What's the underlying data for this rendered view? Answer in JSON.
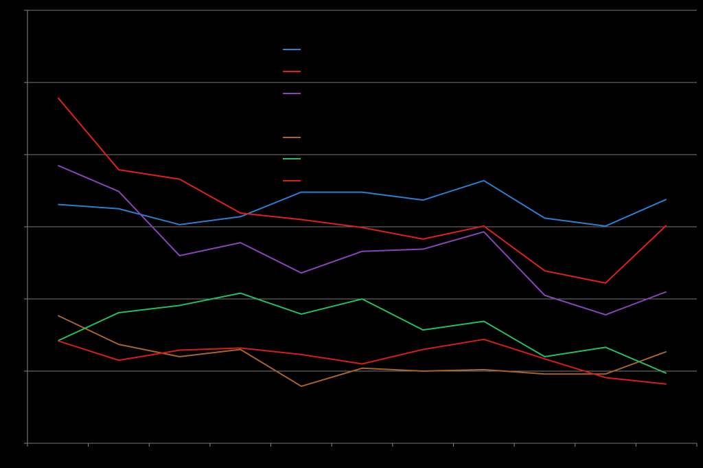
{
  "chart_data": {
    "type": "line",
    "categories": [
      null,
      null,
      null,
      null,
      null,
      null,
      null,
      null,
      null,
      null,
      null
    ],
    "ylim": [
      0,
      6
    ],
    "yticks": [
      0,
      1,
      2,
      3,
      4,
      5,
      6
    ],
    "grid": true,
    "series": [
      {
        "color": "#2a7fd4",
        "values": [
          3.31,
          3.25,
          3.03,
          3.14,
          3.48,
          3.48,
          3.37,
          3.64,
          3.12,
          3.01,
          3.38
        ]
      },
      {
        "color": "#e0201a",
        "values": [
          4.79,
          3.79,
          3.66,
          3.19,
          3.1,
          2.99,
          2.83,
          3.01,
          2.39,
          2.22,
          3.02
        ]
      },
      {
        "color": "#8a44b8",
        "values": [
          3.85,
          3.49,
          2.6,
          2.78,
          2.36,
          2.66,
          2.69,
          2.93,
          2.05,
          1.78,
          2.1
        ]
      },
      {
        "color": "#a8642c",
        "values": [
          1.77,
          1.37,
          1.2,
          1.3,
          0.79,
          1.04,
          1.0,
          1.02,
          0.96,
          0.96,
          1.27
        ]
      },
      {
        "color": "#22c062",
        "values": [
          1.42,
          1.81,
          1.91,
          2.08,
          1.79,
          2.0,
          1.57,
          1.69,
          1.2,
          1.33,
          0.97
        ]
      },
      {
        "color": "#d81c1c",
        "values": [
          1.42,
          1.15,
          1.29,
          1.32,
          1.23,
          1.1,
          1.3,
          1.44,
          1.17,
          0.91,
          0.82
        ]
      }
    ]
  }
}
